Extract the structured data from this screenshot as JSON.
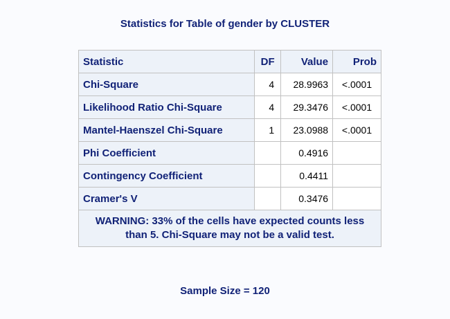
{
  "title": "Statistics for Table of gender by CLUSTER",
  "table": {
    "headers": {
      "statistic": "Statistic",
      "df": "DF",
      "value": "Value",
      "prob": "Prob"
    },
    "rows": [
      {
        "statistic": "Chi-Square",
        "df": "4",
        "value": "28.9963",
        "prob": "<.0001"
      },
      {
        "statistic": "Likelihood Ratio Chi-Square",
        "df": "4",
        "value": "29.3476",
        "prob": "<.0001"
      },
      {
        "statistic": "Mantel-Haenszel Chi-Square",
        "df": "1",
        "value": "23.0988",
        "prob": "<.0001"
      },
      {
        "statistic": "Phi Coefficient",
        "df": "",
        "value": "0.4916",
        "prob": ""
      },
      {
        "statistic": "Contingency Coefficient",
        "df": "",
        "value": "0.4411",
        "prob": ""
      },
      {
        "statistic": "Cramer's V",
        "df": "",
        "value": "0.3476",
        "prob": ""
      }
    ],
    "warning": "WARNING: 33% of the cells have expected counts less than 5. Chi-Square may not be a valid test."
  },
  "sample_size": "Sample Size = 120"
}
